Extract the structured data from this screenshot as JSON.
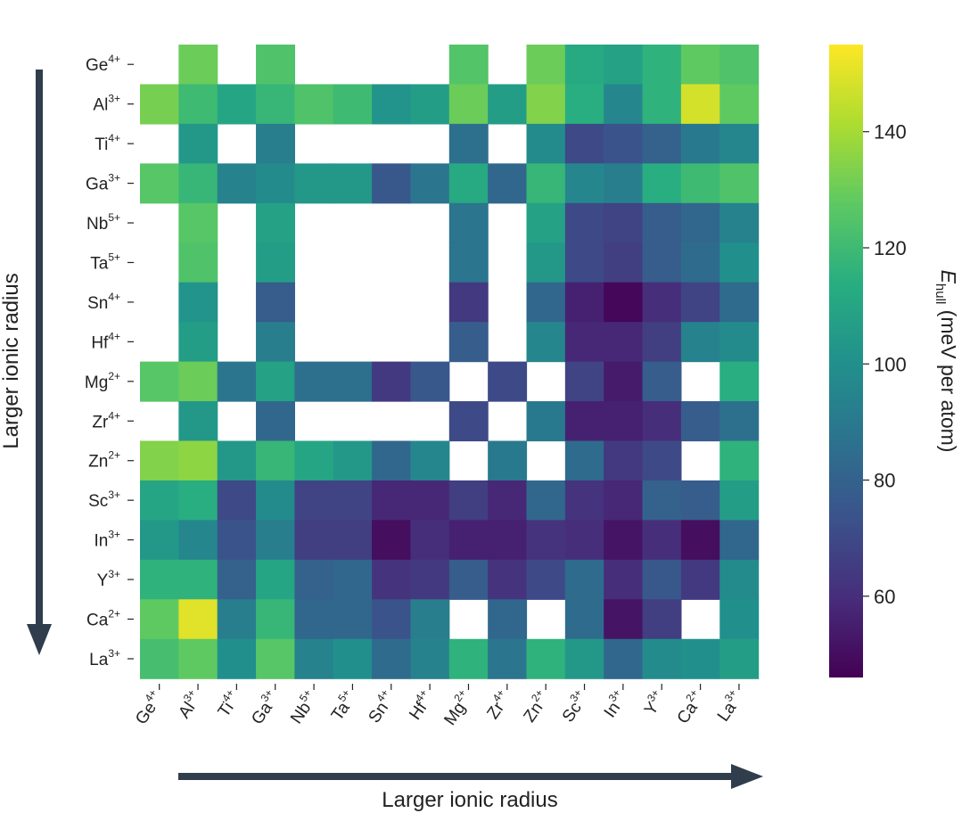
{
  "chart_data": {
    "type": "heatmap",
    "y_labels": [
      {
        "base": "Ge",
        "sup": "4+"
      },
      {
        "base": "Al",
        "sup": "3+"
      },
      {
        "base": "Ti",
        "sup": "4+"
      },
      {
        "base": "Ga",
        "sup": "3+"
      },
      {
        "base": "Nb",
        "sup": "5+"
      },
      {
        "base": "Ta",
        "sup": "5+"
      },
      {
        "base": "Sn",
        "sup": "4+"
      },
      {
        "base": "Hf",
        "sup": "4+"
      },
      {
        "base": "Mg",
        "sup": "2+"
      },
      {
        "base": "Zr",
        "sup": "4+"
      },
      {
        "base": "Zn",
        "sup": "2+"
      },
      {
        "base": "Sc",
        "sup": "3+"
      },
      {
        "base": "In",
        "sup": "3+"
      },
      {
        "base": "Y",
        "sup": "3+"
      },
      {
        "base": "Ca",
        "sup": "2+"
      },
      {
        "base": "La",
        "sup": "3+"
      }
    ],
    "x_labels": [
      {
        "base": "Ge",
        "sup": "4+"
      },
      {
        "base": "Al",
        "sup": "3+"
      },
      {
        "base": "Ti",
        "sup": "4+"
      },
      {
        "base": "Ga",
        "sup": "3+"
      },
      {
        "base": "Nb",
        "sup": "5+"
      },
      {
        "base": "Ta",
        "sup": "5+"
      },
      {
        "base": "Sn",
        "sup": "4+"
      },
      {
        "base": "Hf",
        "sup": "4+"
      },
      {
        "base": "Mg",
        "sup": "2+"
      },
      {
        "base": "Zr",
        "sup": "4+"
      },
      {
        "base": "Zn",
        "sup": "2+"
      },
      {
        "base": "Sc",
        "sup": "3+"
      },
      {
        "base": "In",
        "sup": "3+"
      },
      {
        "base": "Y",
        "sup": "3+"
      },
      {
        "base": "Ca",
        "sup": "2+"
      },
      {
        "base": "La",
        "sup": "3+"
      }
    ],
    "values": [
      [
        null,
        130,
        null,
        124,
        null,
        null,
        null,
        null,
        125,
        null,
        130,
        112,
        108,
        116,
        128,
        124
      ],
      [
        132,
        120,
        110,
        118,
        124,
        120,
        102,
        106,
        130,
        106,
        134,
        114,
        96,
        116,
        148,
        128
      ],
      [
        null,
        104,
        null,
        92,
        null,
        null,
        null,
        null,
        86,
        null,
        98,
        70,
        74,
        80,
        90,
        96
      ],
      [
        126,
        118,
        94,
        98,
        104,
        104,
        76,
        88,
        112,
        82,
        118,
        96,
        92,
        114,
        120,
        124
      ],
      [
        null,
        126,
        null,
        108,
        null,
        null,
        null,
        null,
        88,
        null,
        108,
        70,
        68,
        78,
        82,
        94
      ],
      [
        null,
        124,
        null,
        106,
        null,
        null,
        null,
        null,
        88,
        null,
        104,
        70,
        66,
        78,
        84,
        100
      ],
      [
        null,
        102,
        null,
        78,
        null,
        null,
        null,
        null,
        64,
        null,
        82,
        56,
        48,
        60,
        68,
        84
      ],
      [
        null,
        106,
        null,
        92,
        null,
        null,
        null,
        null,
        78,
        null,
        96,
        58,
        58,
        66,
        94,
        98
      ],
      [
        126,
        130,
        88,
        108,
        86,
        86,
        64,
        76,
        null,
        70,
        null,
        68,
        54,
        78,
        null,
        114
      ],
      [
        null,
        104,
        null,
        82,
        null,
        null,
        null,
        null,
        70,
        null,
        90,
        56,
        56,
        60,
        78,
        86
      ],
      [
        134,
        136,
        104,
        118,
        110,
        104,
        82,
        96,
        null,
        90,
        null,
        84,
        64,
        70,
        null,
        116
      ],
      [
        110,
        114,
        70,
        98,
        68,
        68,
        58,
        58,
        66,
        58,
        82,
        62,
        58,
        80,
        78,
        106
      ],
      [
        104,
        96,
        74,
        92,
        66,
        66,
        50,
        60,
        56,
        56,
        62,
        60,
        52,
        60,
        50,
        82
      ],
      [
        116,
        116,
        80,
        110,
        80,
        82,
        62,
        64,
        78,
        62,
        70,
        84,
        60,
        76,
        64,
        98
      ],
      [
        128,
        150,
        92,
        118,
        82,
        82,
        74,
        92,
        null,
        82,
        null,
        84,
        52,
        66,
        null,
        100
      ],
      [
        122,
        128,
        100,
        126,
        94,
        100,
        84,
        94,
        116,
        88,
        116,
        104,
        82,
        98,
        100,
        106
      ]
    ],
    "colorbar": {
      "min": 46,
      "max": 155,
      "ticks": [
        60,
        80,
        100,
        120,
        140
      ],
      "label_main": "E",
      "label_sub": "hull",
      "label_rest": " (meV per atom)"
    },
    "y_axis_label": "Larger ionic radius",
    "x_axis_label": "Larger ionic radius",
    "colormap": "viridis"
  }
}
